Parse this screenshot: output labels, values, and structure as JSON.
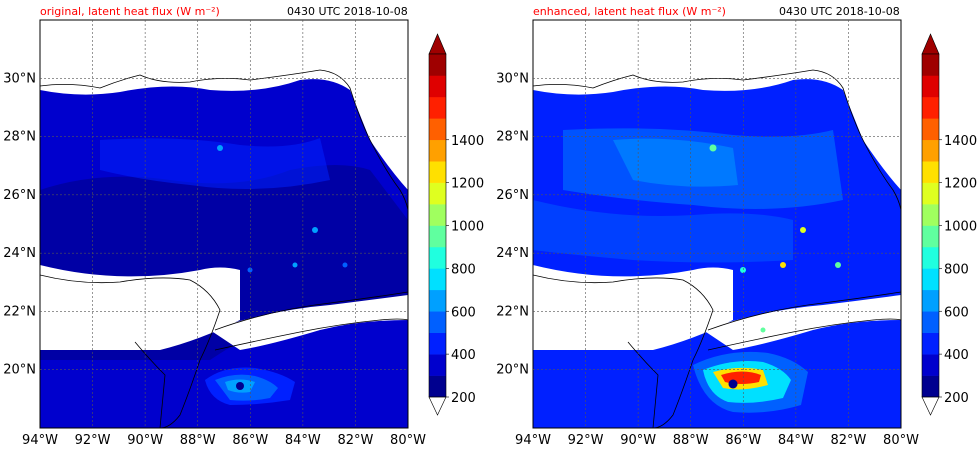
{
  "panels": [
    {
      "id": "original",
      "title_left": "original, latent heat flux (W m⁻²)",
      "title_right": "0430 UTC 2018-10-08"
    },
    {
      "id": "enhanced",
      "title_left": "enhanced, latent heat flux (W m⁻²)",
      "title_right": "0430 UTC 2018-10-08"
    }
  ],
  "map": {
    "lon_range": [
      -94,
      -80
    ],
    "lat_range": [
      18,
      32
    ],
    "lon_ticks": [
      "94°W",
      "92°W",
      "90°W",
      "88°W",
      "86°W",
      "84°W",
      "82°W",
      "80°W"
    ],
    "lat_ticks": [
      "20°N",
      "22°N",
      "24°N",
      "26°N",
      "28°N",
      "30°N"
    ],
    "gridlines": true,
    "land_color": "#ffffff",
    "coastline_color": "#000000"
  },
  "colorbar": {
    "labels": [
      "200",
      "400",
      "600",
      "800",
      "1000",
      "1200",
      "1400"
    ],
    "colors": [
      "#00008f",
      "#0000cd",
      "#0020ff",
      "#0060ff",
      "#00a0ff",
      "#00e0ff",
      "#20ffdf",
      "#60ff9f",
      "#a0ff5f",
      "#dfff20",
      "#ffe000",
      "#ffa000",
      "#ff6000",
      "#ff2000",
      "#df0000",
      "#9f0000"
    ],
    "extend": "both"
  }
}
